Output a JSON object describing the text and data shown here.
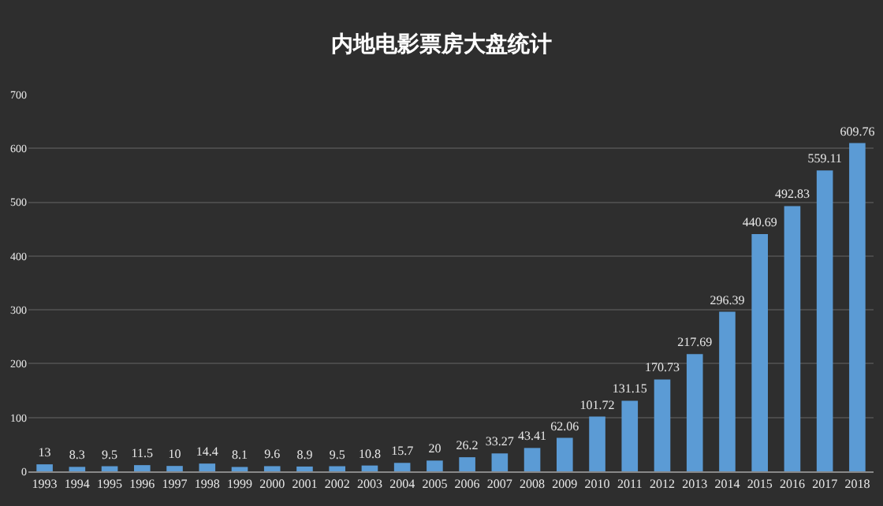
{
  "chart_data": {
    "type": "bar",
    "title": "内地电影票房大盘统计",
    "categories": [
      "1993",
      "1994",
      "1995",
      "1996",
      "1997",
      "1998",
      "1999",
      "2000",
      "2001",
      "2002",
      "2003",
      "2004",
      "2005",
      "2006",
      "2007",
      "2008",
      "2009",
      "2010",
      "2011",
      "2012",
      "2013",
      "2014",
      "2015",
      "2016",
      "2017",
      "2018"
    ],
    "values": [
      13,
      8.3,
      9.5,
      11.5,
      10,
      14.4,
      8.1,
      9.6,
      8.9,
      9.5,
      10.8,
      15.7,
      20,
      26.2,
      33.27,
      43.41,
      62.06,
      101.72,
      131.15,
      170.73,
      217.69,
      296.39,
      440.69,
      492.83,
      559.11,
      609.76
    ],
    "color": "#5b9bd5",
    "ylim": [
      0,
      700
    ],
    "yticks": [
      0,
      100,
      200,
      300,
      400,
      500,
      600,
      700
    ],
    "grid": "y",
    "legend": false,
    "data_labels": true
  }
}
